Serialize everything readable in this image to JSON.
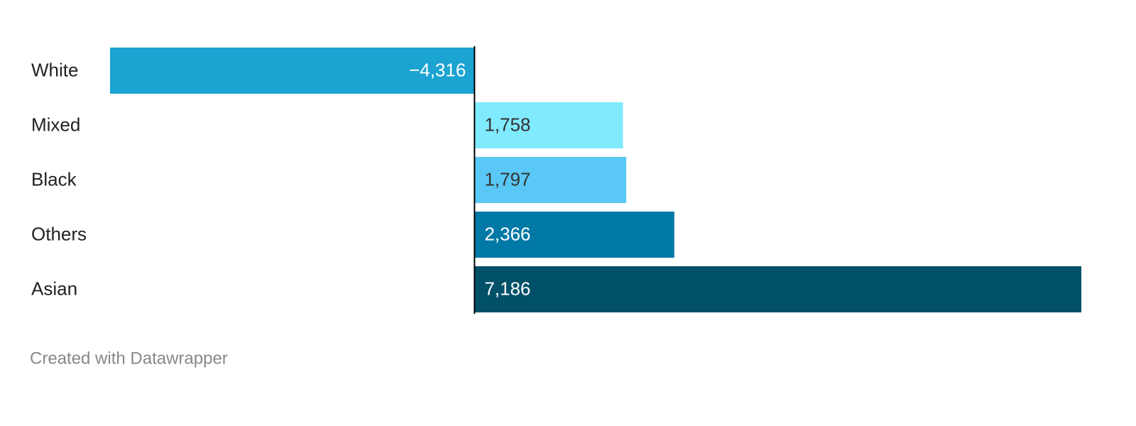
{
  "chart_data": {
    "type": "bar",
    "orientation": "horizontal",
    "categories": [
      "White",
      "Mixed",
      "Black",
      "Others",
      "Asian"
    ],
    "values": [
      -4316,
      1758,
      1797,
      2366,
      7186
    ],
    "value_labels": [
      "−4,316",
      "1,758",
      "1,797",
      "2,366",
      "7,186"
    ],
    "colors": [
      "#1ba3d1",
      "#80eafe",
      "#5ac8f6",
      "#0079a6",
      "#005068"
    ],
    "footer": "Created with Datawrapper"
  }
}
